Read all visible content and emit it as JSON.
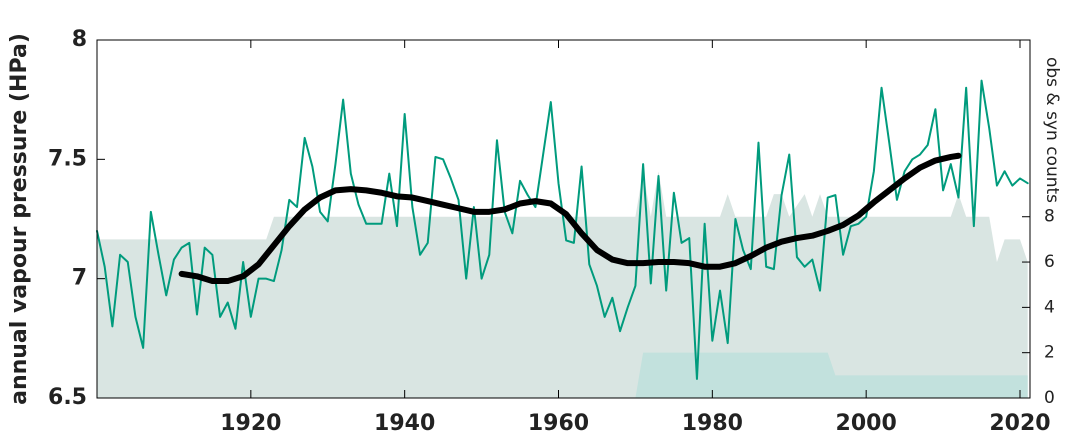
{
  "chart_data": {
    "type": "line",
    "ylabel": "annual vapour pressure (HPa)",
    "y2label": "obs & syn counts",
    "xlim": [
      1900,
      2021.3
    ],
    "ylim": [
      6.5,
      8
    ],
    "y2lim": [
      0,
      15.8
    ],
    "xticks": [
      1920,
      1940,
      1960,
      1980,
      2000,
      2020
    ],
    "yticks": [
      6.5,
      7,
      7.5,
      8
    ],
    "y2ticks": [
      0,
      2,
      4,
      6,
      8
    ],
    "series": [
      {
        "style": "area",
        "axis": "y2",
        "color": "#d9e5e2",
        "x": [
          1900,
          1922,
          1923,
          1970,
          1971,
          1972,
          1973,
          1974,
          1975,
          1981,
          1982,
          1983,
          1987,
          1988,
          1989,
          1990,
          1992,
          1993,
          1994,
          1995,
          2011,
          2012,
          2013,
          2016,
          2017,
          2018,
          2020,
          2021
        ],
        "values": [
          7,
          7,
          8,
          8,
          10,
          8,
          10,
          8,
          8,
          8,
          9,
          8,
          8,
          9,
          9,
          8,
          9,
          8,
          9,
          8,
          8,
          9,
          8,
          8,
          6,
          7,
          7,
          6
        ]
      },
      {
        "style": "area",
        "axis": "y2",
        "color": "#c2e1dd",
        "x": [
          1900,
          1970,
          1971,
          1995,
          1996,
          2021
        ],
        "values": [
          0,
          0,
          2,
          2,
          1,
          1
        ]
      },
      {
        "style": "line",
        "color": "#009b7d",
        "x": [
          1900,
          1901,
          1902,
          1903,
          1904,
          1905,
          1906,
          1907,
          1908,
          1909,
          1910,
          1911,
          1912,
          1913,
          1914,
          1915,
          1916,
          1917,
          1918,
          1919,
          1920,
          1921,
          1922,
          1923,
          1924,
          1925,
          1926,
          1927,
          1928,
          1929,
          1930,
          1931,
          1932,
          1933,
          1934,
          1935,
          1936,
          1937,
          1938,
          1939,
          1940,
          1941,
          1942,
          1943,
          1944,
          1945,
          1946,
          1947,
          1948,
          1949,
          1950,
          1951,
          1952,
          1953,
          1954,
          1955,
          1956,
          1957,
          1958,
          1959,
          1960,
          1961,
          1962,
          1963,
          1964,
          1965,
          1966,
          1967,
          1968,
          1969,
          1970,
          1971,
          1972,
          1973,
          1974,
          1975,
          1976,
          1977,
          1978,
          1979,
          1980,
          1981,
          1982,
          1983,
          1984,
          1985,
          1986,
          1987,
          1988,
          1989,
          1990,
          1991,
          1992,
          1993,
          1994,
          1995,
          1996,
          1997,
          1998,
          1999,
          2000,
          2001,
          2002,
          2003,
          2004,
          2005,
          2006,
          2007,
          2008,
          2009,
          2010,
          2011,
          2012,
          2013,
          2014,
          2015,
          2016,
          2017,
          2018,
          2019,
          2020,
          2021
        ],
        "values": [
          7.2,
          7.05,
          6.8,
          7.1,
          7.07,
          6.84,
          6.71,
          7.28,
          7.1,
          6.93,
          7.08,
          7.13,
          7.15,
          6.85,
          7.13,
          7.1,
          6.84,
          6.9,
          6.79,
          7.07,
          6.84,
          7.0,
          7.0,
          6.99,
          7.12,
          7.33,
          7.3,
          7.59,
          7.47,
          7.28,
          7.24,
          7.48,
          7.75,
          7.44,
          7.31,
          7.23,
          7.23,
          7.23,
          7.44,
          7.22,
          7.69,
          7.3,
          7.1,
          7.15,
          7.51,
          7.5,
          7.42,
          7.33,
          7.0,
          7.3,
          7.0,
          7.1,
          7.58,
          7.28,
          7.19,
          7.41,
          7.35,
          7.3,
          7.52,
          7.74,
          7.4,
          7.16,
          7.15,
          7.47,
          7.06,
          6.97,
          6.84,
          6.92,
          6.78,
          6.88,
          6.97,
          7.48,
          6.98,
          7.43,
          6.95,
          7.36,
          7.15,
          7.17,
          6.58,
          7.23,
          6.74,
          6.95,
          6.73,
          7.25,
          7.12,
          7.04,
          7.57,
          7.05,
          7.04,
          7.35,
          7.52,
          7.09,
          7.05,
          7.08,
          6.95,
          7.34,
          7.35,
          7.1,
          7.22,
          7.23,
          7.26,
          7.45,
          7.8,
          7.57,
          7.33,
          7.45,
          7.5,
          7.52,
          7.56,
          7.71,
          7.37,
          7.48,
          7.34,
          7.8,
          7.22,
          7.83,
          7.63,
          7.39,
          7.45,
          7.39,
          7.42,
          7.4
        ]
      },
      {
        "style": "smooth",
        "color": "#000000",
        "x": [
          1911,
          1913,
          1915,
          1917,
          1919,
          1921,
          1923,
          1925,
          1927,
          1929,
          1931,
          1933,
          1935,
          1937,
          1939,
          1941,
          1943,
          1945,
          1947,
          1949,
          1951,
          1953,
          1955,
          1957,
          1959,
          1961,
          1963,
          1965,
          1967,
          1969,
          1971,
          1973,
          1975,
          1977,
          1979,
          1981,
          1983,
          1985,
          1987,
          1989,
          1991,
          1993,
          1995,
          1997,
          1999,
          2001,
          2003,
          2005,
          2007,
          2009,
          2011,
          2012
        ],
        "values": [
          7.02,
          7.01,
          6.99,
          6.99,
          7.01,
          7.06,
          7.14,
          7.22,
          7.29,
          7.34,
          7.37,
          7.375,
          7.37,
          7.36,
          7.345,
          7.34,
          7.325,
          7.31,
          7.295,
          7.28,
          7.28,
          7.29,
          7.315,
          7.325,
          7.315,
          7.27,
          7.19,
          7.12,
          7.08,
          7.065,
          7.065,
          7.07,
          7.07,
          7.065,
          7.05,
          7.05,
          7.065,
          7.095,
          7.13,
          7.155,
          7.17,
          7.18,
          7.2,
          7.225,
          7.265,
          7.32,
          7.37,
          7.42,
          7.465,
          7.495,
          7.51,
          7.515
        ]
      }
    ]
  }
}
